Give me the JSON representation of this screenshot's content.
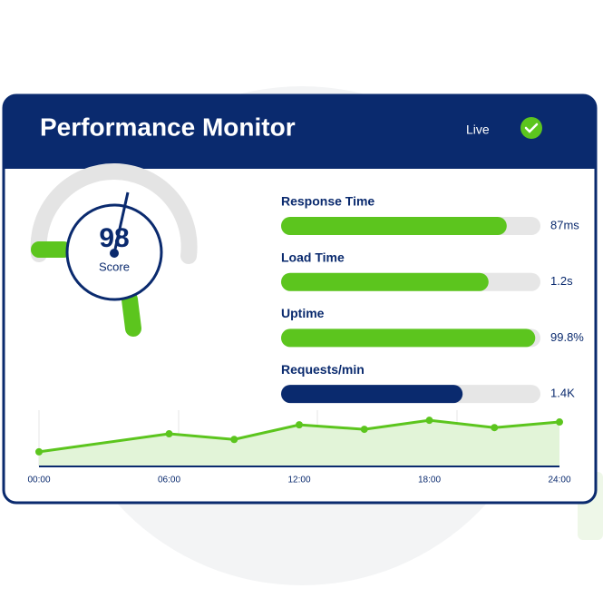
{
  "header": {
    "title": "Performance Monitor",
    "status": "Live"
  },
  "gauge": {
    "score": 98,
    "label": "Score"
  },
  "metrics": [
    {
      "label": "Response Time",
      "value": "87ms",
      "level": 87,
      "color": "#5cc51e"
    },
    {
      "label": "Load Time",
      "value": "1.2s",
      "level": 80,
      "color": "#5cc51e"
    },
    {
      "label": "Uptime",
      "value": "99.8%",
      "level": 98,
      "color": "#5cc51e"
    },
    {
      "label": "Requests/min",
      "value": "1.4K",
      "level": 70,
      "color": "#0a2a6e"
    }
  ],
  "trend": {
    "type": "line",
    "color": "#5cc51e",
    "x": [
      0,
      6,
      9,
      12,
      15,
      18,
      21,
      24
    ],
    "values": [
      26,
      58,
      48,
      74,
      66,
      82,
      69,
      79
    ],
    "xlim": [
      0,
      24
    ],
    "ylim": [
      0,
      100
    ],
    "xticks": [
      {
        "value": 0,
        "label": "00:00"
      },
      {
        "value": 6,
        "label": "06:00"
      },
      {
        "value": 12,
        "label": "12:00"
      },
      {
        "value": 18,
        "label": "18:00"
      },
      {
        "value": 24,
        "label": "24:00"
      }
    ]
  }
}
